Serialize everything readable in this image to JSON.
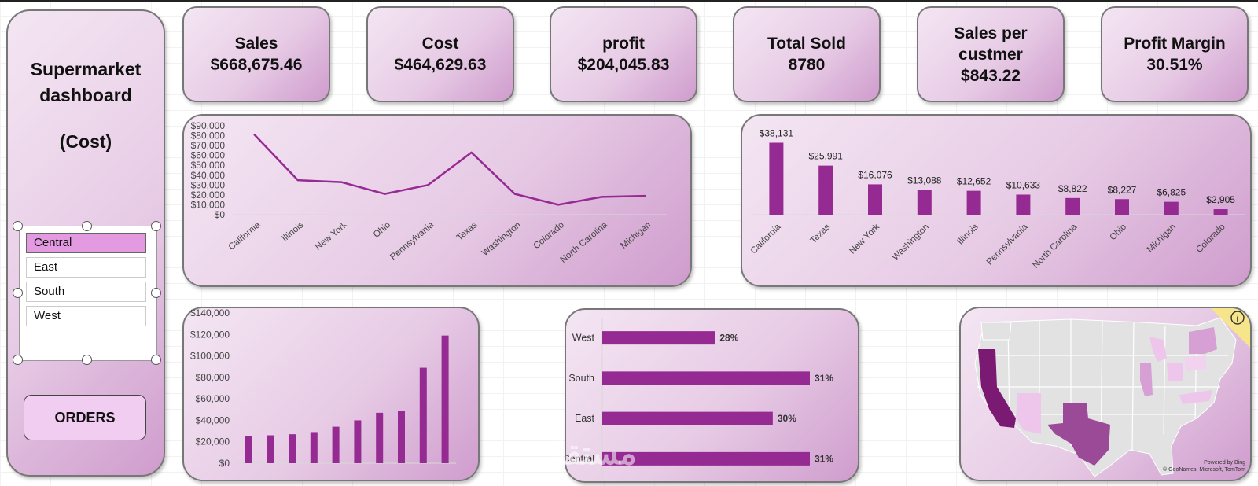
{
  "sidebar": {
    "title": "Supermarket dashboard",
    "subtitle": "(Cost)",
    "slicer_items": [
      "Central",
      "East",
      "South",
      "West"
    ],
    "selected": "Central",
    "orders_button": "ORDERS"
  },
  "kpis": [
    {
      "lines": [
        "Sales",
        "$668,675.46"
      ]
    },
    {
      "lines": [
        "Cost",
        "$464,629.63"
      ]
    },
    {
      "lines": [
        "profit",
        "$204,045.83"
      ]
    },
    {
      "lines": [
        "Total Sold",
        "8780"
      ]
    },
    {
      "lines": [
        "Sales per",
        "custmer",
        "$843.22"
      ]
    },
    {
      "lines": [
        "Profit Margin",
        "30.51%"
      ]
    }
  ],
  "chart_data": [
    {
      "type": "line",
      "categories": [
        "California",
        "Illinois",
        "New York",
        "Ohio",
        "Pennsylvania",
        "Texas",
        "Washington",
        "Colorado",
        "North Carolina",
        "Michigan"
      ],
      "values": [
        81000,
        35000,
        33000,
        21000,
        30000,
        63000,
        21000,
        10000,
        18000,
        19000
      ],
      "ylim": [
        0,
        90000
      ],
      "yticks": [
        "$90,000",
        "$80,000",
        "$70,000",
        "$60,000",
        "$50,000",
        "$40,000",
        "$30,000",
        "$20,000",
        "$10,000",
        "$0"
      ],
      "color": "#952a92"
    },
    {
      "type": "bar",
      "categories": [
        "California",
        "Texas",
        "New York",
        "Washington",
        "Illinois",
        "Pennsylvania",
        "North Carolina",
        "Ohio",
        "Michigan",
        "Colorado"
      ],
      "values": [
        38131,
        25991,
        16076,
        13088,
        12652,
        10633,
        8822,
        8227,
        6825,
        2905
      ],
      "labels": [
        "$38,131",
        "$25,991",
        "$16,076",
        "$13,088",
        "$12,652",
        "$10,633",
        "$8,822",
        "$8,227",
        "$6,825",
        "$2,905"
      ],
      "ylim": [
        0,
        40000
      ],
      "color": "#952a92"
    },
    {
      "type": "bar",
      "values": [
        25000,
        26000,
        27000,
        29000,
        34000,
        40000,
        47000,
        49000,
        89000,
        119000
      ],
      "ylim": [
        0,
        140000
      ],
      "yticks": [
        "$140,000",
        "$120,000",
        "$100,000",
        "$80,000",
        "$60,000",
        "$40,000",
        "$20,000",
        "$0"
      ],
      "color": "#952a92"
    },
    {
      "type": "bar",
      "orientation": "horizontal",
      "categories": [
        "West",
        "South",
        "East",
        "Central"
      ],
      "values": [
        28,
        31,
        30,
        31
      ],
      "labels": [
        "28%",
        "31%",
        "30%",
        "31%"
      ],
      "color": "#952a92"
    }
  ],
  "map": {
    "credit_line1": "Powered by Bing",
    "credit_line2": "© GeoNames, Microsoft, TomTom",
    "info_icon": "info-icon"
  },
  "watermark": "مستقل"
}
